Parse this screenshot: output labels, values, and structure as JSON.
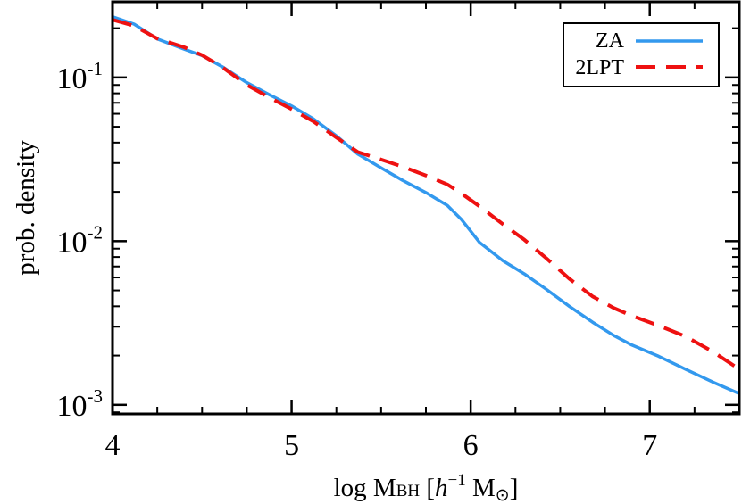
{
  "chart_data": {
    "type": "line",
    "title": "",
    "xlabel": {
      "prefix": "log M",
      "subscript": "BH",
      "bracket_open": " [",
      "h": "h",
      "h_exp": "−1",
      "m": " M",
      "odot": "⊙",
      "bracket_close": "]"
    },
    "ylabel": "prob. density",
    "xlim": [
      4,
      7.5
    ],
    "ylim": [
      0.00088,
      0.29
    ],
    "yscale": "log",
    "x_ticks": [
      {
        "value": 4,
        "label": "4"
      },
      {
        "value": 5,
        "label": "5"
      },
      {
        "value": 6,
        "label": "6"
      },
      {
        "value": 7,
        "label": "7"
      }
    ],
    "y_ticks": [
      {
        "value": 0.1,
        "base": "10",
        "exp": "-1"
      },
      {
        "value": 0.01,
        "base": "10",
        "exp": "-2"
      },
      {
        "value": 0.001,
        "base": "10",
        "exp": "-3"
      }
    ],
    "legend_position": "top-right",
    "series": [
      {
        "name": "ZA",
        "color": "#3399ee",
        "style": "solid",
        "x": [
          4.0,
          4.12,
          4.25,
          4.4,
          4.5,
          4.62,
          4.75,
          4.87,
          5.0,
          5.12,
          5.25,
          5.37,
          5.5,
          5.62,
          5.75,
          5.87,
          5.95,
          6.05,
          6.18,
          6.3,
          6.42,
          6.55,
          6.68,
          6.8,
          6.9,
          7.05,
          7.2,
          7.35,
          7.5
        ],
        "y": [
          0.235,
          0.212,
          0.172,
          0.149,
          0.136,
          0.115,
          0.093,
          0.079,
          0.067,
          0.056,
          0.044,
          0.034,
          0.028,
          0.0235,
          0.0198,
          0.0165,
          0.0135,
          0.0098,
          0.0076,
          0.0063,
          0.0051,
          0.004,
          0.0032,
          0.00265,
          0.00232,
          0.00198,
          0.00165,
          0.00138,
          0.00117
        ]
      },
      {
        "name": "2LPT",
        "color": "#ee1111",
        "style": "dashed",
        "x": [
          4.0,
          4.12,
          4.25,
          4.4,
          4.5,
          4.62,
          4.75,
          4.87,
          5.0,
          5.12,
          5.25,
          5.37,
          5.5,
          5.62,
          5.75,
          5.87,
          5.95,
          6.05,
          6.18,
          6.3,
          6.42,
          6.55,
          6.68,
          6.8,
          6.9,
          7.05,
          7.2,
          7.35,
          7.5
        ],
        "y": [
          0.225,
          0.207,
          0.173,
          0.153,
          0.137,
          0.114,
          0.09,
          0.076,
          0.064,
          0.054,
          0.043,
          0.035,
          0.0315,
          0.0285,
          0.0252,
          0.0222,
          0.0195,
          0.0163,
          0.0127,
          0.0102,
          0.0079,
          0.0059,
          0.0046,
          0.0039,
          0.0035,
          0.00305,
          0.00262,
          0.00212,
          0.00165
        ]
      }
    ]
  }
}
